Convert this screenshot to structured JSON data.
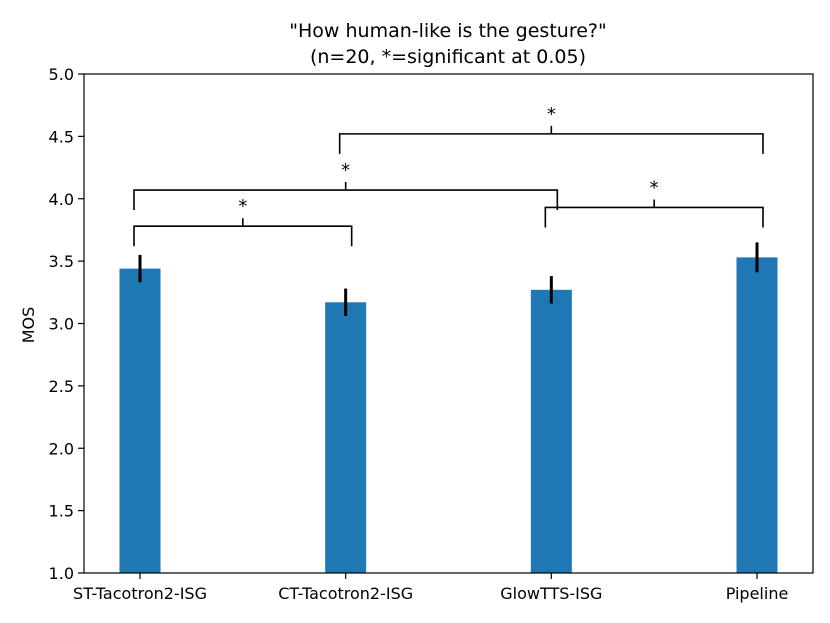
{
  "chart_data": {
    "type": "bar",
    "title": "\"How human-like is the gesture?\"",
    "subtitle": "(n=20, *=significant at 0.05)",
    "xlabel": "",
    "ylabel": "MOS",
    "ylim": [
      1.0,
      5.0
    ],
    "yticks": [
      "1.0",
      "1.5",
      "2.0",
      "2.5",
      "3.0",
      "3.5",
      "4.0",
      "4.5",
      "5.0"
    ],
    "categories": [
      "ST-Tacotron2-ISG",
      "CT-Tacotron2-ISG",
      "GlowTTS-ISG",
      "Pipeline"
    ],
    "values": [
      3.44,
      3.17,
      3.27,
      3.53
    ],
    "errors": [
      0.11,
      0.11,
      0.11,
      0.12
    ],
    "bar_color": "#1f77b4",
    "grid": false,
    "significance": [
      {
        "from": 0,
        "to": 1,
        "y": 3.78,
        "label": "*"
      },
      {
        "from": 2,
        "to": 3,
        "y": 3.93,
        "label": "*"
      },
      {
        "from": 0,
        "to": 2,
        "y": 4.07,
        "label": "*"
      },
      {
        "from": 1,
        "to": 3,
        "y": 4.52,
        "label": "*"
      }
    ]
  }
}
